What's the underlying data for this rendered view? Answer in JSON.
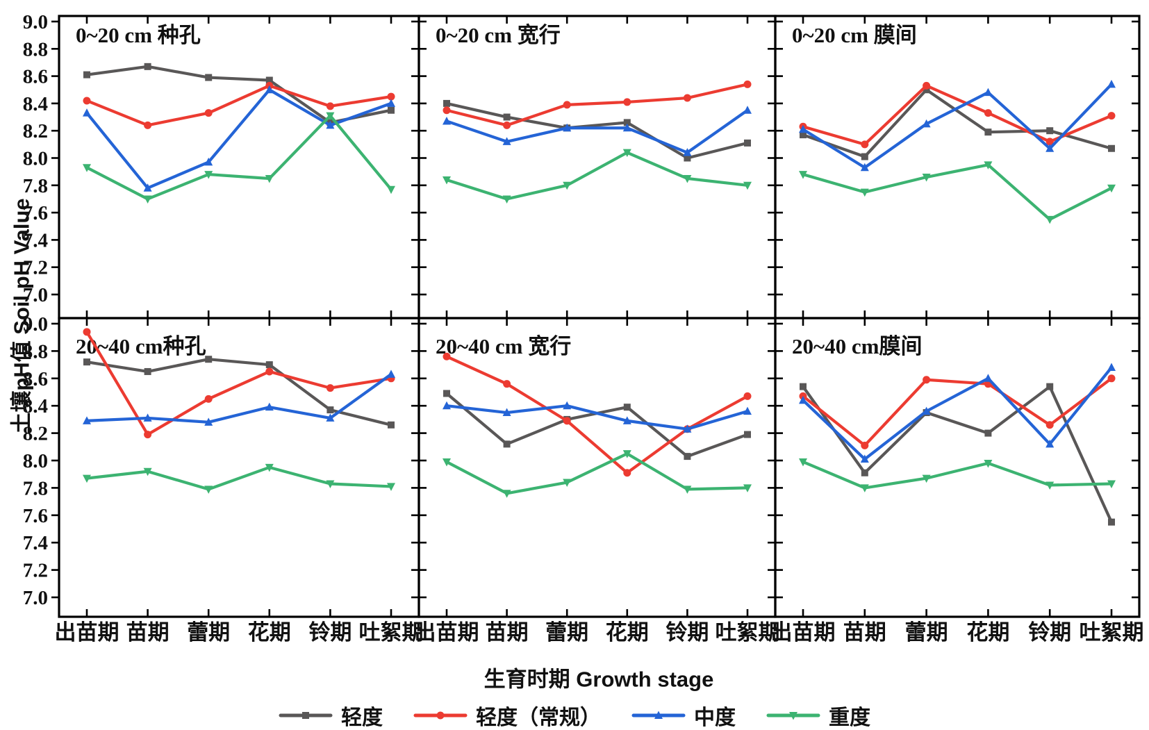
{
  "figure": {
    "y_axis_title": "土壤pH值 Soil pH Value",
    "x_axis_title": "生育时期 Growth stage",
    "y_tick_labels": [
      "9.0",
      "8.8",
      "8.6",
      "8.4",
      "8.2",
      "8.0",
      "7.8",
      "7.6",
      "7.4",
      "7.2",
      "7.0"
    ],
    "categories": [
      "出苗期",
      "苗期",
      "蕾期",
      "花期",
      "铃期",
      "吐絮期"
    ]
  },
  "legend": [
    {
      "label": "轻度",
      "color": "#595757",
      "marker": "square"
    },
    {
      "label": "轻度（常规）",
      "color": "#ec3b31",
      "marker": "circle"
    },
    {
      "label": "中度",
      "color": "#2464d6",
      "marker": "triangle-up"
    },
    {
      "label": "重度",
      "color": "#3cb371",
      "marker": "triangle-down"
    }
  ],
  "chart_data": [
    {
      "type": "line",
      "title": "0~20 cm 种孔",
      "xlabel": "生育时期 Growth stage",
      "ylabel": "土壤pH值 Soil pH Value",
      "ylim": [
        7.0,
        9.0
      ],
      "categories": [
        "出苗期",
        "苗期",
        "蕾期",
        "花期",
        "铃期",
        "吐絮期"
      ],
      "series": [
        {
          "name": "轻度",
          "values": [
            8.61,
            8.67,
            8.59,
            8.57,
            8.26,
            8.35
          ]
        },
        {
          "name": "轻度（常规）",
          "values": [
            8.42,
            8.24,
            8.33,
            8.53,
            8.38,
            8.45
          ]
        },
        {
          "name": "中度",
          "values": [
            8.33,
            7.78,
            7.97,
            8.5,
            8.24,
            8.4
          ]
        },
        {
          "name": "重度",
          "values": [
            7.93,
            7.7,
            7.88,
            7.85,
            8.31,
            7.77
          ]
        }
      ]
    },
    {
      "type": "line",
      "title": "0~20 cm 宽行",
      "ylim": [
        7.0,
        9.0
      ],
      "series": [
        {
          "name": "轻度",
          "values": [
            8.4,
            8.3,
            8.22,
            8.26,
            8.0,
            8.11
          ]
        },
        {
          "name": "轻度（常规）",
          "values": [
            8.35,
            8.24,
            8.39,
            8.41,
            8.44,
            8.54
          ]
        },
        {
          "name": "中度",
          "values": [
            8.27,
            8.12,
            8.22,
            8.22,
            8.04,
            8.35
          ]
        },
        {
          "name": "重度",
          "values": [
            7.84,
            7.7,
            7.8,
            8.04,
            7.85,
            7.8
          ]
        }
      ]
    },
    {
      "type": "line",
      "title": "0~20 cm 膜间",
      "ylim": [
        7.0,
        9.0
      ],
      "series": [
        {
          "name": "轻度",
          "values": [
            8.17,
            8.01,
            8.5,
            8.19,
            8.2,
            8.07
          ]
        },
        {
          "name": "轻度（常规）",
          "values": [
            8.23,
            8.1,
            8.53,
            8.33,
            8.12,
            8.31
          ]
        },
        {
          "name": "中度",
          "values": [
            8.21,
            7.93,
            8.25,
            8.48,
            8.07,
            8.54
          ]
        },
        {
          "name": "重度",
          "values": [
            7.88,
            7.75,
            7.86,
            7.95,
            7.55,
            7.78
          ]
        }
      ]
    },
    {
      "type": "line",
      "title": "20~40 cm种孔",
      "ylim": [
        7.0,
        9.0
      ],
      "series": [
        {
          "name": "轻度",
          "values": [
            8.72,
            8.65,
            8.74,
            8.7,
            8.37,
            8.26
          ]
        },
        {
          "name": "轻度（常规）",
          "values": [
            8.94,
            8.19,
            8.45,
            8.65,
            8.53,
            8.6
          ]
        },
        {
          "name": "中度",
          "values": [
            8.29,
            8.31,
            8.28,
            8.39,
            8.31,
            8.63
          ]
        },
        {
          "name": "重度",
          "values": [
            7.87,
            7.92,
            7.79,
            7.95,
            7.83,
            7.81
          ]
        }
      ]
    },
    {
      "type": "line",
      "title": "20~40 cm 宽行",
      "ylim": [
        7.0,
        9.0
      ],
      "series": [
        {
          "name": "轻度",
          "values": [
            8.49,
            8.12,
            8.3,
            8.39,
            8.03,
            8.19
          ]
        },
        {
          "name": "轻度（常规）",
          "values": [
            8.76,
            8.56,
            8.29,
            7.91,
            8.23,
            8.47
          ]
        },
        {
          "name": "中度",
          "values": [
            8.4,
            8.35,
            8.4,
            8.29,
            8.23,
            8.36
          ]
        },
        {
          "name": "重度",
          "values": [
            7.99,
            7.76,
            7.84,
            8.05,
            7.79,
            7.8
          ]
        }
      ]
    },
    {
      "type": "line",
      "title": "20~40 cm膜间",
      "ylim": [
        7.0,
        9.0
      ],
      "series": [
        {
          "name": "轻度",
          "values": [
            8.54,
            7.91,
            8.35,
            8.2,
            8.54,
            7.55
          ]
        },
        {
          "name": "轻度（常规）",
          "values": [
            8.47,
            8.11,
            8.59,
            8.56,
            8.26,
            8.6
          ]
        },
        {
          "name": "中度",
          "values": [
            8.44,
            8.01,
            8.36,
            8.6,
            8.12,
            8.68
          ]
        },
        {
          "name": "重度",
          "values": [
            7.99,
            7.8,
            7.87,
            7.98,
            7.82,
            7.83
          ]
        }
      ]
    }
  ]
}
